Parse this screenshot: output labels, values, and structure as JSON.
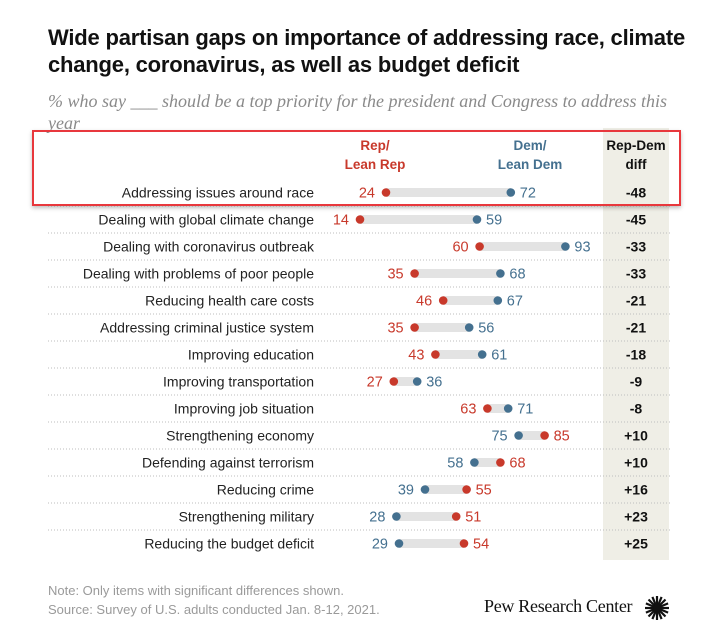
{
  "chart_data": {
    "type": "dumbbell",
    "title": "Wide partisan gaps on importance of addressing race, climate change, coronavirus, as well as budget deficit",
    "subtitle": "% who say ___ should be a top priority for the president and Congress to address this year",
    "series": [
      {
        "name": "Rep/ Lean Rep",
        "color": "#c8392b"
      },
      {
        "name": "Dem/ Lean Dem",
        "color": "#44708f"
      }
    ],
    "headers": {
      "rep_line1": "Rep/",
      "rep_line2": "Lean Rep",
      "dem_line1": "Dem/",
      "dem_line2": "Lean Dem",
      "diff_line1": "Rep-Dem",
      "diff_line2": "diff"
    },
    "xlim": [
      0,
      100
    ],
    "rows": [
      {
        "label": "Addressing issues around race",
        "rep": 24,
        "dem": 72,
        "diff": "-48"
      },
      {
        "label": "Dealing with global climate change",
        "rep": 14,
        "dem": 59,
        "diff": "-45"
      },
      {
        "label": "Dealing with coronavirus outbreak",
        "rep": 60,
        "dem": 93,
        "diff": "-33"
      },
      {
        "label": "Dealing with problems of poor people",
        "rep": 35,
        "dem": 68,
        "diff": "-33"
      },
      {
        "label": "Reducing health care costs",
        "rep": 46,
        "dem": 67,
        "diff": "-21"
      },
      {
        "label": "Addressing criminal justice system",
        "rep": 35,
        "dem": 56,
        "diff": "-21"
      },
      {
        "label": "Improving education",
        "rep": 43,
        "dem": 61,
        "diff": "-18"
      },
      {
        "label": "Improving transportation",
        "rep": 27,
        "dem": 36,
        "diff": "-9"
      },
      {
        "label": "Improving job situation",
        "rep": 63,
        "dem": 71,
        "diff": "-8"
      },
      {
        "label": "Strengthening economy",
        "rep": 85,
        "dem": 75,
        "diff": "+10"
      },
      {
        "label": "Defending against terrorism",
        "rep": 68,
        "dem": 58,
        "diff": "+10"
      },
      {
        "label": "Reducing crime",
        "rep": 55,
        "dem": 39,
        "diff": "+16"
      },
      {
        "label": "Strengthening military",
        "rep": 51,
        "dem": 28,
        "diff": "+23"
      },
      {
        "label": "Reducing the budget deficit",
        "rep": 54,
        "dem": 29,
        "diff": "+25"
      }
    ],
    "annotations": {
      "highlighted_row": "Addressing issues around race"
    }
  },
  "footer": {
    "note": "Note: Only items with significant differences shown.",
    "source": "Source: Survey of U.S. adults conducted Jan. 8-12, 2021.",
    "brand": "Pew Research Center",
    "brand_icon": "pew-sunburst-logo"
  },
  "colors": {
    "rep": "#c8392b",
    "dem": "#44708f",
    "bar": "#e3e3e3",
    "diff_bg": "#efeee6",
    "highlight_border": "#e8383d"
  }
}
